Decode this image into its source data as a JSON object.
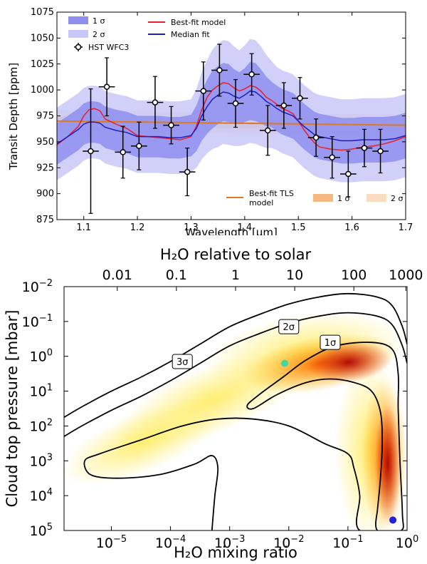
{
  "chart_data": [
    {
      "type": "line",
      "title": "",
      "xlabel": "Wavelength [μm]",
      "ylabel": "Transit Depth [ppm]",
      "xlim": [
        1.05,
        1.7
      ],
      "ylim": [
        875,
        1075
      ],
      "xticks": [
        1.1,
        1.2,
        1.3,
        1.4,
        1.5,
        1.6,
        1.7
      ],
      "xtick_labels": [
        "1.1",
        "1.2",
        "1.3",
        "1.4",
        "1.5",
        "1.6",
        "1.7"
      ],
      "yticks": [
        875,
        900,
        925,
        950,
        975,
        1000,
        1025,
        1050,
        1075
      ],
      "ytick_labels": [
        "875",
        "900",
        "925",
        "950",
        "975",
        "1000",
        "1025",
        "1050",
        "1075"
      ],
      "legend_upper": {
        "sigma1": "1 σ",
        "sigma2": "2 σ",
        "best_fit": "Best-fit model",
        "median": "Median fit",
        "hst": "HST WFC3"
      },
      "legend_lower": {
        "tls_line": "Best-fit TLS",
        "tls_line_2": "model",
        "tls_1sigma": "1 σ",
        "tls_2sigma": "2 σ"
      },
      "colors": {
        "best_fit": "#e8202a",
        "median": "#1f1fbf",
        "band1": "#8f8ff0",
        "band2": "#c8c8f8",
        "tls_line": "#e07820",
        "tls_band1": "#f4b880",
        "tls_band2": "#fadcc0"
      },
      "observations": {
        "name": "HST WFC3",
        "x": [
          1.113,
          1.143,
          1.173,
          1.203,
          1.233,
          1.263,
          1.293,
          1.323,
          1.353,
          1.383,
          1.413,
          1.443,
          1.473,
          1.503,
          1.533,
          1.563,
          1.593,
          1.623,
          1.653
        ],
        "y": [
          941,
          1003,
          940,
          946,
          988,
          966,
          921,
          999,
          1019,
          987,
          1015,
          961,
          985,
          992,
          954,
          935,
          919,
          944,
          941
        ],
        "yerr": [
          60,
          28,
          25,
          23,
          25,
          18,
          23,
          28,
          25,
          23,
          20,
          24,
          22,
          20,
          18,
          20,
          22,
          18,
          21
        ],
        "xerr": 0.015
      },
      "series": [
        {
          "name": "Best-fit model",
          "x": [
            1.05,
            1.07,
            1.09,
            1.1,
            1.11,
            1.12,
            1.13,
            1.14,
            1.16,
            1.18,
            1.2,
            1.22,
            1.24,
            1.26,
            1.28,
            1.3,
            1.31,
            1.32,
            1.33,
            1.34,
            1.35,
            1.36,
            1.37,
            1.38,
            1.39,
            1.4,
            1.41,
            1.42,
            1.43,
            1.44,
            1.45,
            1.46,
            1.47,
            1.48,
            1.49,
            1.5,
            1.51,
            1.52,
            1.53,
            1.54,
            1.56,
            1.58,
            1.6,
            1.62,
            1.64,
            1.66,
            1.68,
            1.7
          ],
          "y": [
            947,
            955,
            965,
            975,
            981,
            982,
            980,
            972,
            967,
            963,
            956,
            955,
            954,
            953,
            952,
            955,
            965,
            981,
            993,
            1000,
            1004,
            1007,
            1006,
            1002,
            999,
            1001,
            1004,
            1003,
            999,
            993,
            990,
            986,
            982,
            980,
            977,
            970,
            962,
            955,
            949,
            945,
            943,
            942,
            943,
            945,
            946,
            948,
            951,
            955
          ]
        },
        {
          "name": "Median fit",
          "x": [
            1.05,
            1.07,
            1.09,
            1.1,
            1.11,
            1.12,
            1.13,
            1.14,
            1.16,
            1.18,
            1.2,
            1.22,
            1.24,
            1.26,
            1.28,
            1.3,
            1.31,
            1.32,
            1.33,
            1.34,
            1.35,
            1.36,
            1.37,
            1.38,
            1.39,
            1.4,
            1.41,
            1.42,
            1.43,
            1.44,
            1.45,
            1.46,
            1.47,
            1.48,
            1.49,
            1.5,
            1.51,
            1.52,
            1.53,
            1.54,
            1.56,
            1.58,
            1.6,
            1.62,
            1.64,
            1.66,
            1.68,
            1.7
          ],
          "y": [
            948,
            955,
            962,
            967,
            969,
            969,
            968,
            964,
            961,
            959,
            955,
            955,
            955,
            954,
            954,
            956,
            963,
            975,
            984,
            991,
            995,
            998,
            997,
            994,
            992,
            995,
            999,
            998,
            994,
            989,
            986,
            982,
            979,
            977,
            975,
            970,
            965,
            961,
            957,
            955,
            953,
            951,
            951,
            952,
            952,
            952,
            953,
            956
          ],
          "band1": [
            20,
            20,
            20,
            20,
            20,
            20,
            20,
            20,
            20,
            20,
            20,
            20,
            20,
            20,
            20,
            20,
            22,
            24,
            26,
            28,
            28,
            28,
            28,
            26,
            25,
            26,
            28,
            28,
            26,
            24,
            22,
            22,
            22,
            22,
            22,
            22,
            22,
            22,
            22,
            22,
            22,
            22,
            22,
            22,
            22,
            22,
            22,
            22
          ],
          "band2": [
            35,
            35,
            35,
            35,
            35,
            35,
            35,
            35,
            35,
            35,
            35,
            35,
            35,
            35,
            35,
            35,
            38,
            42,
            45,
            48,
            50,
            50,
            50,
            48,
            46,
            48,
            50,
            50,
            48,
            45,
            42,
            40,
            40,
            40,
            40,
            40,
            40,
            40,
            40,
            40,
            40,
            40,
            40,
            40,
            40,
            40,
            40,
            40
          ]
        },
        {
          "name": "Best-fit TLS model",
          "x": [
            1.05,
            1.7
          ],
          "y": [
            970,
            966
          ],
          "band1": 5,
          "band2": 10
        }
      ]
    },
    {
      "type": "heatmap",
      "title": "",
      "xlabel": "H₂O mixing ratio",
      "ylabel": "Cloud top pressure [mbar]",
      "top_xlabel": "H₂O relative to solar",
      "xlim_log10": [
        -5.8,
        0
      ],
      "ylim_log10": [
        5,
        -2
      ],
      "xticks": [
        {
          "base": "10",
          "exp": "−5",
          "log10": -5
        },
        {
          "base": "10",
          "exp": "−4",
          "log10": -4
        },
        {
          "base": "10",
          "exp": "−3",
          "log10": -3
        },
        {
          "base": "10",
          "exp": "−2",
          "log10": -2
        },
        {
          "base": "10",
          "exp": "−1",
          "log10": -1
        },
        {
          "base": "10",
          "exp": "0",
          "log10": 0
        }
      ],
      "yticks": [
        {
          "base": "10",
          "exp": "−2",
          "log10": -2
        },
        {
          "base": "10",
          "exp": "−1",
          "log10": -1
        },
        {
          "base": "10",
          "exp": "0",
          "log10": 0
        },
        {
          "base": "10",
          "exp": "1",
          "log10": 1
        },
        {
          "base": "10",
          "exp": "2",
          "log10": 2
        },
        {
          "base": "10",
          "exp": "3",
          "log10": 3
        },
        {
          "base": "10",
          "exp": "4",
          "log10": 4
        },
        {
          "base": "10",
          "exp": "5",
          "log10": 5
        }
      ],
      "top_ticks": [
        {
          "label": "0.01",
          "log10": -4.9
        },
        {
          "label": "0.1",
          "log10": -3.9
        },
        {
          "label": "1",
          "log10": -2.9
        },
        {
          "label": "10",
          "log10": -1.9
        },
        {
          "label": "100",
          "log10": -0.9
        },
        {
          "label": "1000",
          "log10": 0.1
        }
      ],
      "contour_labels": [
        {
          "text": "1σ",
          "x_log10": -1.3,
          "y_log10": -0.4
        },
        {
          "text": "2σ",
          "x_log10": -2.0,
          "y_log10": -0.85
        },
        {
          "text": "3σ",
          "x_log10": -3.8,
          "y_log10": 0.15
        }
      ],
      "markers": [
        {
          "name": "best-fit",
          "color": "#40d8a8",
          "x_log10": -2.07,
          "y_log10": 0.2
        },
        {
          "name": "alternative",
          "color": "#2222dd",
          "x_log10": -0.24,
          "y_log10": 4.7
        }
      ],
      "contours": {
        "sigma1_outer": [
          [
            -0.5,
            4.4
          ],
          [
            -0.45,
            3.5
          ],
          [
            -0.42,
            2.5
          ],
          [
            -0.45,
            1.6
          ],
          [
            -0.6,
            1.0
          ],
          [
            -0.9,
            0.75
          ],
          [
            -1.3,
            0.65
          ],
          [
            -1.7,
            0.75
          ],
          [
            -2.2,
            1.1
          ],
          [
            -2.6,
            1.5
          ],
          [
            -2.7,
            1.4
          ],
          [
            -2.5,
            1.1
          ],
          [
            -2.1,
            0.6
          ],
          [
            -1.7,
            0.1
          ],
          [
            -1.2,
            -0.3
          ],
          [
            -0.6,
            -0.4
          ],
          [
            -0.25,
            -0.2
          ],
          [
            -0.15,
            0.5
          ],
          [
            -0.15,
            1.5
          ],
          [
            -0.12,
            3.0
          ],
          [
            -0.08,
            4.5
          ],
          [
            -0.1,
            5.0
          ],
          [
            -0.5,
            5.0
          ],
          [
            -0.5,
            4.4
          ]
        ],
        "sigma2": [
          [
            -5.8,
            2.3
          ],
          [
            -5.5,
            2.0
          ],
          [
            -5.0,
            1.55
          ],
          [
            -4.5,
            1.15
          ],
          [
            -4.0,
            0.7
          ],
          [
            -3.5,
            0.2
          ],
          [
            -3.0,
            -0.3
          ],
          [
            -2.5,
            -0.65
          ],
          [
            -2.0,
            -0.95
          ],
          [
            -1.5,
            -1.15
          ],
          [
            -1.0,
            -1.25
          ],
          [
            -0.5,
            -1.15
          ],
          [
            -0.25,
            -0.9
          ],
          [
            -0.08,
            -0.3
          ],
          [
            0.0,
            0.2
          ]
        ],
        "sigma2_lower": [
          [
            0.0,
            5.0
          ],
          [
            -0.8,
            5.0
          ],
          [
            -0.8,
            4.0
          ],
          [
            -0.9,
            3.2
          ],
          [
            -1.0,
            2.8
          ],
          [
            -1.4,
            2.5
          ],
          [
            -2.0,
            2.0
          ],
          [
            -2.6,
            1.8
          ],
          [
            -3.2,
            1.8
          ],
          [
            -3.8,
            2.0
          ],
          [
            -4.5,
            2.4
          ],
          [
            -5.2,
            2.8
          ],
          [
            -5.45,
            3.0
          ],
          [
            -5.35,
            3.4
          ],
          [
            -4.9,
            3.5
          ],
          [
            -4.2,
            3.4
          ],
          [
            -3.6,
            3.1
          ],
          [
            -3.3,
            2.85
          ],
          [
            -3.2,
            3.2
          ],
          [
            -3.25,
            4.0
          ],
          [
            -3.3,
            5.0
          ]
        ]
      }
    }
  ]
}
